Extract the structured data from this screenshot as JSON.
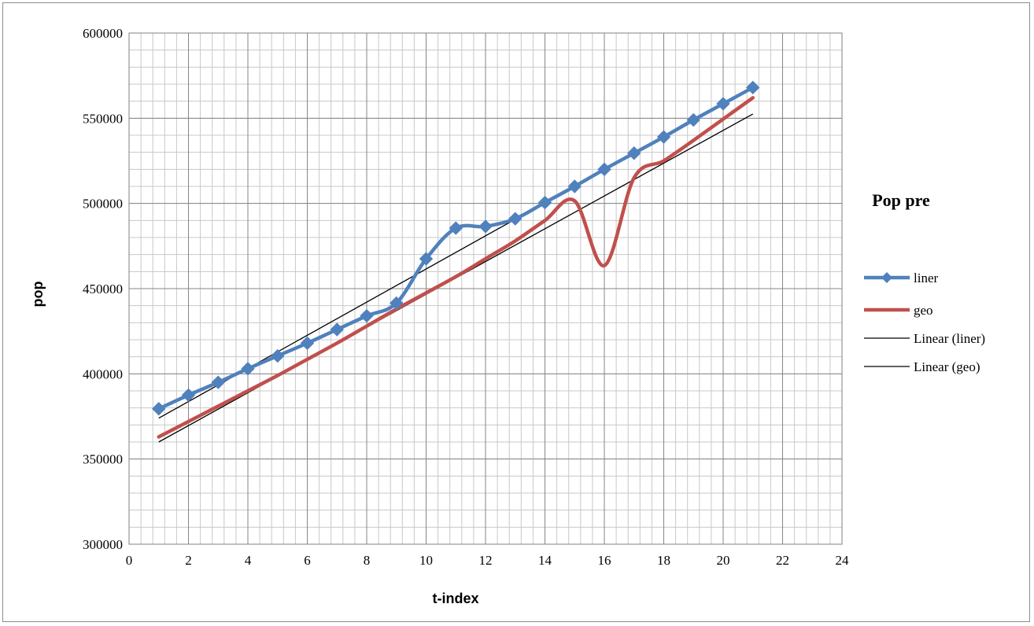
{
  "chart_data": {
    "type": "line",
    "title": "Pop pre",
    "xlabel": "t-index",
    "ylabel": "pop",
    "xlim": [
      0,
      24
    ],
    "ylim": [
      300000,
      600000
    ],
    "x_ticks": [
      0,
      2,
      4,
      6,
      8,
      10,
      12,
      14,
      16,
      18,
      20,
      22,
      24
    ],
    "y_ticks": [
      300000,
      350000,
      400000,
      450000,
      500000,
      550000,
      600000
    ],
    "grid": true,
    "legend_position": "right",
    "series": [
      {
        "name": "liner",
        "color": "#4f81bd",
        "marker": "diamond",
        "x": [
          1,
          2,
          3,
          4,
          5,
          6,
          7,
          8,
          9,
          10,
          11,
          12,
          13,
          14,
          15,
          16,
          17,
          18,
          19,
          20,
          21
        ],
        "y": [
          379500,
          387500,
          395000,
          403000,
          410500,
          418000,
          426000,
          434000,
          441500,
          467500,
          485500,
          486500,
          491000,
          500500,
          510000,
          520000,
          529500,
          539000,
          549000,
          558500,
          568000
        ]
      },
      {
        "name": "geo",
        "color": "#c0504d",
        "marker": "none",
        "x": [
          1,
          2,
          3,
          4,
          5,
          6,
          7,
          8,
          9,
          10,
          11,
          12,
          13,
          14,
          15,
          16,
          17,
          18,
          19,
          20,
          21
        ],
        "y": [
          363000,
          372000,
          381000,
          390000,
          399000,
          408500,
          418000,
          428000,
          438000,
          447500,
          457000,
          467500,
          478000,
          490000,
          501500,
          463500,
          515000,
          525000,
          537000,
          549500,
          562000
        ]
      },
      {
        "name": "Linear (liner)",
        "color": "#000000",
        "trendline": true,
        "x": [
          1,
          21
        ],
        "y": [
          374000,
          568500
        ]
      },
      {
        "name": "Linear (geo)",
        "color": "#000000",
        "trendline": true,
        "x": [
          1,
          21
        ],
        "y": [
          360000,
          552500
        ]
      }
    ]
  }
}
